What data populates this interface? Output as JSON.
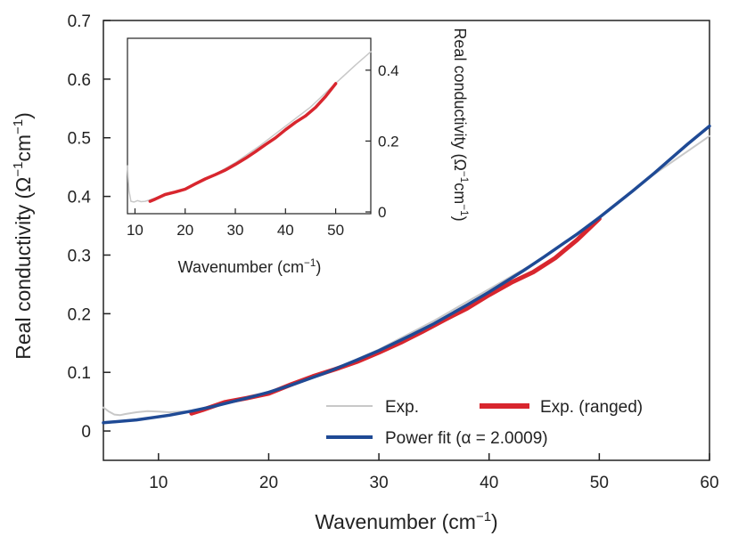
{
  "chart_data": [
    {
      "type": "line",
      "panel": "main",
      "xlabel": "Wavenumber (cm⁻¹)",
      "ylabel": "Real conductivity (Ω⁻¹cm⁻¹)",
      "xlim": [
        5,
        60
      ],
      "ylim": [
        -0.05,
        0.7
      ],
      "xticks": [
        10,
        20,
        30,
        40,
        50,
        60
      ],
      "yticks": [
        0,
        0.1,
        0.2,
        0.3,
        0.4,
        0.5,
        0.6,
        0.7
      ],
      "xtick_labels": [
        "10",
        "20",
        "30",
        "40",
        "50",
        "60"
      ],
      "ytick_labels": [
        "0",
        "0.1",
        "0.2",
        "0.3",
        "0.4",
        "0.5",
        "0.6",
        "0.7"
      ],
      "legend_placement": "bottom-right",
      "series": [
        {
          "name": "Exp.",
          "color": "#c8c8c8",
          "x": [
            5,
            5.5,
            6,
            6.5,
            7,
            8,
            9,
            10,
            11,
            12,
            13,
            15,
            20,
            25,
            30,
            35,
            40,
            45,
            50,
            55,
            58,
            60
          ],
          "y": [
            0.04,
            0.033,
            0.028,
            0.027,
            0.029,
            0.032,
            0.034,
            0.033,
            0.032,
            0.033,
            0.034,
            0.044,
            0.066,
            0.098,
            0.139,
            0.188,
            0.242,
            0.296,
            0.363,
            0.438,
            0.477,
            0.503
          ]
        },
        {
          "name": "Exp. (ranged)",
          "color": "#d8262e",
          "x": [
            13,
            14,
            16,
            18,
            20,
            22,
            24,
            26,
            28,
            30,
            32,
            34,
            36,
            38,
            40,
            42,
            44,
            46,
            48,
            50
          ],
          "y": [
            0.03,
            0.036,
            0.049,
            0.056,
            0.064,
            0.079,
            0.093,
            0.105,
            0.118,
            0.134,
            0.151,
            0.17,
            0.19,
            0.209,
            0.232,
            0.253,
            0.271,
            0.295,
            0.326,
            0.362
          ]
        },
        {
          "name": "Power fit (α = 2.0009)",
          "color": "#1f4a95",
          "x": [
            5,
            8,
            11,
            13,
            15,
            18,
            20,
            22,
            25,
            28,
            30,
            33,
            35,
            38,
            40,
            43,
            45,
            48,
            50,
            53,
            55,
            58,
            60
          ],
          "y": [
            0.014,
            0.019,
            0.027,
            0.034,
            0.042,
            0.056,
            0.066,
            0.078,
            0.098,
            0.121,
            0.137,
            0.164,
            0.183,
            0.215,
            0.237,
            0.272,
            0.297,
            0.336,
            0.364,
            0.409,
            0.44,
            0.489,
            0.52
          ]
        }
      ],
      "legend": [
        {
          "label": "Exp.",
          "series": 0
        },
        {
          "label": "Exp. (ranged)",
          "series": 1
        },
        {
          "label": "Power fit (α = 2.0009)",
          "series": 2
        }
      ]
    },
    {
      "type": "line",
      "panel": "inset",
      "xlabel": "Wavenumber (cm⁻¹)",
      "ylabel": "Real conductivity (Ω⁻¹cm⁻¹)",
      "xlim": [
        8.5,
        57
      ],
      "ylim": [
        -0.005,
        0.49
      ],
      "xticks": [
        10,
        20,
        30,
        40,
        50
      ],
      "yticks": [
        0,
        0.2,
        0.4
      ],
      "xtick_labels": [
        "10",
        "20",
        "30",
        "40",
        "50"
      ],
      "ytick_labels": [
        "0",
        "0.2",
        "0.4"
      ],
      "series": [
        {
          "color": "#c8c8c8",
          "x": [
            8.5,
            8.8,
            9.2,
            9.8,
            10.5,
            11.2,
            12,
            13,
            15,
            20,
            25,
            30,
            35,
            40,
            45,
            50,
            54,
            57
          ],
          "y": [
            0.13,
            0.06,
            0.03,
            0.028,
            0.032,
            0.029,
            0.03,
            0.034,
            0.044,
            0.066,
            0.098,
            0.139,
            0.188,
            0.242,
            0.296,
            0.363,
            0.415,
            0.452
          ]
        },
        {
          "color": "#d8262e",
          "x": [
            13,
            14,
            16,
            18,
            20,
            22,
            24,
            26,
            28,
            30,
            32,
            34,
            36,
            38,
            40,
            42,
            44,
            46,
            48,
            50
          ],
          "y": [
            0.03,
            0.036,
            0.049,
            0.056,
            0.064,
            0.079,
            0.093,
            0.105,
            0.118,
            0.134,
            0.151,
            0.17,
            0.19,
            0.209,
            0.232,
            0.253,
            0.271,
            0.295,
            0.326,
            0.362
          ]
        }
      ]
    }
  ]
}
